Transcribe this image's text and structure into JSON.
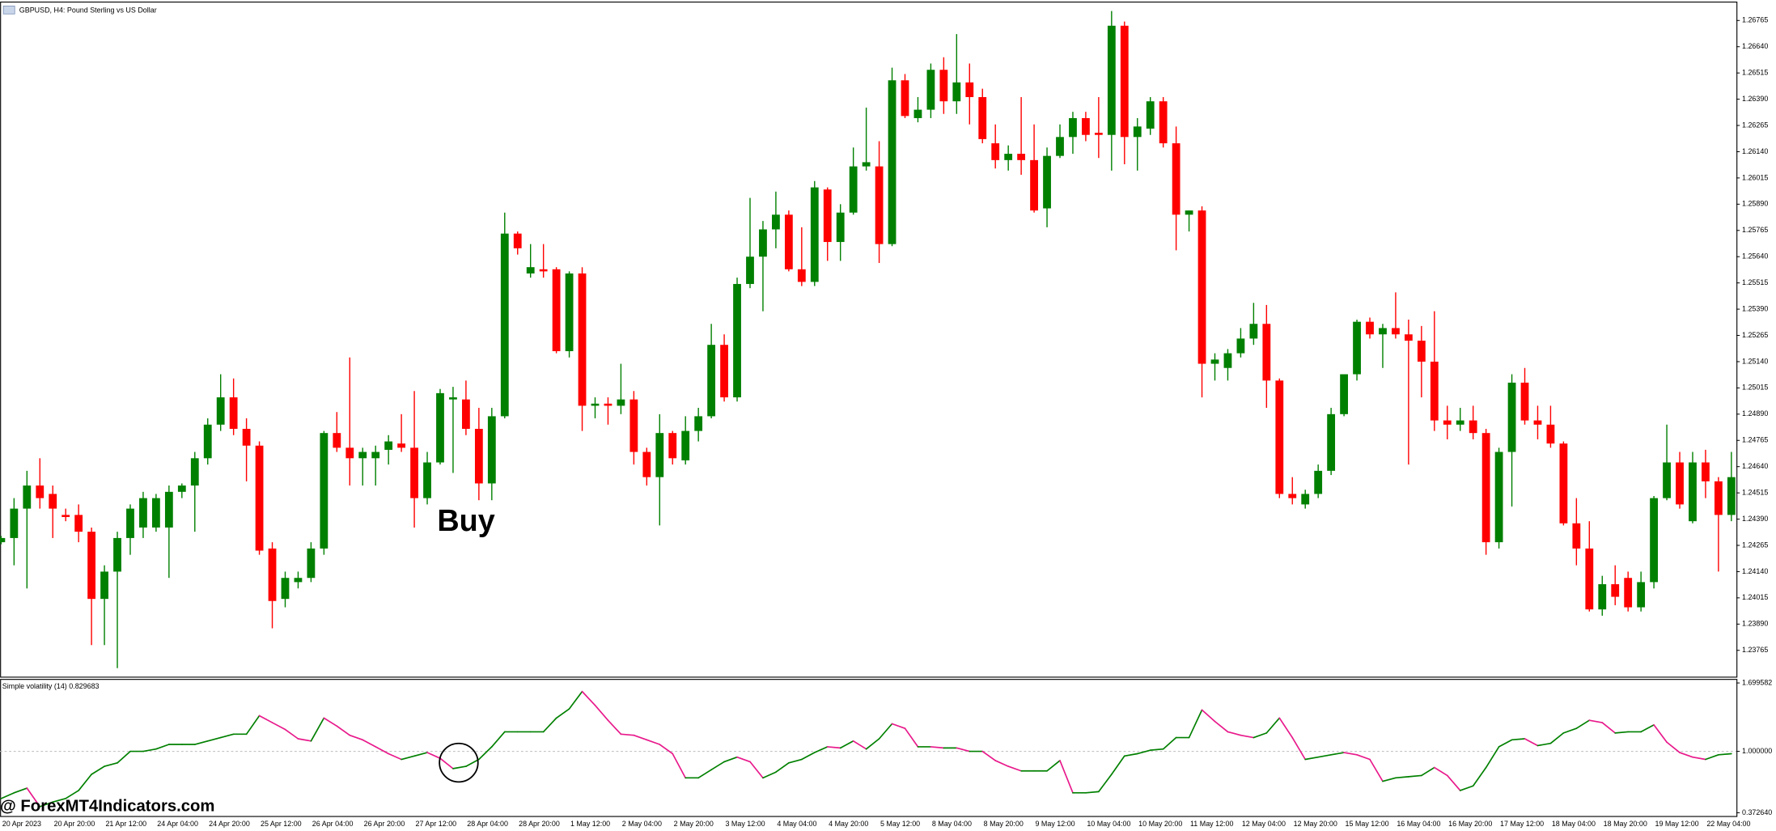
{
  "chart_data": [
    {
      "type": "candlestick",
      "title": "GBPUSD, H4:  Pound Sterling vs US Dollar",
      "annotation": "Buy",
      "categories": [
        "20 Apr 2023",
        null,
        null,
        null,
        "20 Apr 20:00",
        null,
        null,
        null,
        "21 Apr 12:00",
        null,
        null,
        null,
        "24 Apr 04:00",
        null,
        null,
        null,
        "24 Apr 20:00",
        null,
        null,
        null,
        "25 Apr 12:00",
        null,
        null,
        null,
        "26 Apr 04:00",
        null,
        null,
        null,
        "26 Apr 20:00",
        null,
        null,
        null,
        "27 Apr 12:00",
        null,
        null,
        null,
        "28 Apr 04:00",
        null,
        null,
        null,
        "28 Apr 20:00",
        null,
        null,
        null,
        "1 May 12:00",
        null,
        null,
        null,
        "2 May 04:00",
        null,
        null,
        null,
        "2 May 20:00",
        null,
        null,
        null,
        "3 May 12:00",
        null,
        null,
        null,
        "4 May 04:00",
        null,
        null,
        null,
        "4 May 20:00",
        null,
        null,
        null,
        "5 May 12:00",
        null,
        null,
        null,
        "8 May 04:00",
        null,
        null,
        null,
        "8 May 20:00",
        null,
        null,
        null,
        "9 May 12:00",
        null,
        null,
        null,
        "10 May 04:00",
        null,
        null,
        null,
        "10 May 20:00",
        null,
        null,
        null,
        "11 May 12:00",
        null,
        null,
        null,
        "12 May 04:00",
        null,
        null,
        null,
        "12 May 20:00",
        null,
        null,
        null,
        "15 May 12:00",
        null,
        null,
        null,
        "16 May 04:00",
        null,
        null,
        null,
        "16 May 20:00",
        null,
        null,
        null,
        "17 May 12:00",
        null,
        null,
        null,
        "18 May 04:00",
        null,
        null,
        null,
        "18 May 20:00",
        null,
        null,
        null,
        "19 May 12:00",
        null,
        null,
        null,
        "22 May 04:00",
        null,
        null
      ],
      "open": [
        1.2428,
        1.243,
        1.2444,
        1.2455,
        1.2451,
        1.2441,
        1.2441,
        1.2433,
        1.2401,
        1.2414,
        1.243,
        1.2435,
        1.2435,
        1.2435,
        1.2452,
        1.2455,
        1.2468,
        1.2484,
        1.2497,
        1.2482,
        1.2474,
        1.2425,
        1.2401,
        1.2409,
        1.2411,
        1.2425,
        1.248,
        1.2473,
        1.2468,
        1.2468,
        1.2472,
        1.2475,
        1.2473,
        1.2449,
        1.2466,
        1.2496,
        1.2496,
        1.2482,
        1.2456,
        1.2488,
        1.2575,
        1.2556,
        1.2558,
        1.2558,
        1.2519,
        1.2556,
        1.2493,
        1.2494,
        1.2493,
        1.2496,
        1.2471,
        1.2459,
        1.248,
        1.2467,
        1.2481,
        1.2488,
        1.2522,
        1.2497,
        1.2551,
        1.2564,
        1.2577,
        1.2584,
        1.2558,
        1.2552,
        1.2596,
        1.2571,
        1.2585,
        1.2607,
        1.2607,
        1.257,
        1.2648,
        1.263,
        1.2634,
        1.2653,
        1.2638,
        1.2647,
        1.264,
        1.2618,
        1.261,
        1.2613,
        1.261,
        1.2587,
        1.2612,
        1.2621,
        1.263,
        1.2623,
        1.2622,
        1.2674,
        1.2621,
        1.2625,
        1.2638,
        1.2618,
        1.2584,
        1.2586,
        1.2513,
        1.2511,
        1.2518,
        1.2525,
        1.2532,
        1.2505,
        1.2451,
        1.2446,
        1.2451,
        1.2462,
        1.2489,
        1.2508,
        1.2533,
        1.2527,
        1.253,
        1.2527,
        1.2524,
        1.2514,
        1.2486,
        1.2484,
        1.2486,
        1.248,
        1.2428,
        1.2471,
        1.2504,
        1.2486,
        1.2484,
        1.2475,
        1.2437,
        1.2425,
        1.2396,
        1.2408,
        1.2411,
        1.2397,
        1.2409,
        1.2449,
        1.2466,
        1.2438,
        1.2466,
        1.2457,
        1.2441
      ],
      "high": [
        1.2431,
        1.2449,
        1.2462,
        1.2468,
        1.2455,
        1.2444,
        1.2446,
        1.2435,
        1.2417,
        1.2433,
        1.2446,
        1.2452,
        1.2451,
        1.2455,
        1.2456,
        1.2471,
        1.2487,
        1.2508,
        1.2506,
        1.2487,
        1.2476,
        1.2428,
        1.2414,
        1.2414,
        1.2428,
        1.2481,
        1.249,
        1.2516,
        1.2473,
        1.2474,
        1.2479,
        1.2489,
        1.25,
        1.2471,
        1.2501,
        1.2502,
        1.2505,
        1.2492,
        1.2492,
        1.2585,
        1.2576,
        1.257,
        1.257,
        1.2559,
        1.2557,
        1.2559,
        1.2497,
        1.2497,
        1.2513,
        1.25,
        1.2473,
        1.2489,
        1.2481,
        1.2488,
        1.2492,
        1.2532,
        1.2527,
        1.2554,
        1.2592,
        1.2581,
        1.2595,
        1.2586,
        1.2578,
        1.26,
        1.2597,
        1.2589,
        1.2616,
        1.2635,
        1.2619,
        1.2654,
        1.2651,
        1.264,
        1.2656,
        1.2659,
        1.267,
        1.2656,
        1.2644,
        1.2627,
        1.2617,
        1.264,
        1.2627,
        1.2616,
        1.2627,
        1.2633,
        1.2633,
        1.264,
        1.2681,
        1.2676,
        1.263,
        1.264,
        1.264,
        1.2626,
        1.2586,
        1.2588,
        1.2518,
        1.252,
        1.253,
        1.2542,
        1.2541,
        1.2506,
        1.2459,
        1.2453,
        1.2465,
        1.2492,
        1.2508,
        1.2534,
        1.2535,
        1.2532,
        1.2547,
        1.2534,
        1.2531,
        1.2538,
        1.2493,
        1.2492,
        1.2493,
        1.2482,
        1.2473,
        1.2508,
        1.2511,
        1.2493,
        1.2493,
        1.2476,
        1.2449,
        1.2438,
        1.2412,
        1.2417,
        1.2414,
        1.2414,
        1.245,
        1.2484,
        1.2471,
        1.2471,
        1.2472,
        1.2459,
        1.2471
      ],
      "low": [
        1.2427,
        1.2417,
        1.2406,
        1.2444,
        1.243,
        1.2438,
        1.2428,
        1.2379,
        1.2379,
        1.2368,
        1.2422,
        1.243,
        1.2433,
        1.2411,
        1.2449,
        1.2433,
        1.2465,
        1.2481,
        1.2479,
        1.2457,
        1.2422,
        1.2387,
        1.2397,
        1.2406,
        1.2409,
        1.2422,
        1.2471,
        1.2455,
        1.2455,
        1.2455,
        1.2465,
        1.2471,
        1.2435,
        1.2446,
        1.2465,
        1.2461,
        1.2479,
        1.2448,
        1.2448,
        1.2487,
        1.2565,
        1.2554,
        1.2554,
        1.2518,
        1.2516,
        1.2481,
        1.2487,
        1.2484,
        1.2489,
        1.2465,
        1.2455,
        1.2436,
        1.2465,
        1.2465,
        1.2476,
        1.2487,
        1.2495,
        1.2495,
        1.2549,
        1.2538,
        1.2568,
        1.2557,
        1.255,
        1.255,
        1.2562,
        1.2562,
        1.2584,
        1.2605,
        1.2561,
        1.2569,
        1.263,
        1.2628,
        1.263,
        1.2632,
        1.2632,
        1.2627,
        1.2618,
        1.2606,
        1.2605,
        1.2603,
        1.2585,
        1.2578,
        1.2611,
        1.2613,
        1.2619,
        1.2611,
        1.2605,
        1.2608,
        1.2605,
        1.2622,
        1.2616,
        1.2567,
        1.2576,
        1.2497,
        1.2505,
        1.2505,
        1.2516,
        1.2522,
        1.2492,
        1.2449,
        1.2446,
        1.2444,
        1.2449,
        1.246,
        1.2488,
        1.2505,
        1.2525,
        1.2511,
        1.2525,
        1.2465,
        1.2497,
        1.2481,
        1.2477,
        1.2481,
        1.2477,
        1.2422,
        1.2425,
        1.2445,
        1.2484,
        1.2477,
        1.2473,
        1.2436,
        1.2417,
        1.2395,
        1.2393,
        1.2398,
        1.2395,
        1.2395,
        1.2406,
        1.2448,
        1.2444,
        1.2437,
        1.2449,
        1.2414,
        1.2438
      ],
      "close": [
        1.243,
        1.2444,
        1.2455,
        1.2449,
        1.2444,
        1.244,
        1.2433,
        1.2401,
        1.2414,
        1.243,
        1.2444,
        1.2449,
        1.2449,
        1.2452,
        1.2455,
        1.2468,
        1.2484,
        1.2497,
        1.2482,
        1.2474,
        1.2424,
        1.24,
        1.2411,
        1.2411,
        1.2425,
        1.248,
        1.2473,
        1.2468,
        1.2471,
        1.2471,
        1.2476,
        1.2473,
        1.2449,
        1.2466,
        1.2499,
        1.2497,
        1.2482,
        1.2456,
        1.2488,
        1.2575,
        1.2568,
        1.2559,
        1.2557,
        1.2519,
        1.2556,
        1.2493,
        1.2494,
        1.2493,
        1.2496,
        1.2471,
        1.2459,
        1.248,
        1.2468,
        1.2481,
        1.2488,
        1.2522,
        1.2497,
        1.2551,
        1.2564,
        1.2577,
        1.2584,
        1.2558,
        1.2552,
        1.2597,
        1.2571,
        1.2585,
        1.2607,
        1.2609,
        1.257,
        1.2648,
        1.2631,
        1.2634,
        1.2653,
        1.2638,
        1.2647,
        1.264,
        1.262,
        1.261,
        1.2613,
        1.261,
        1.2586,
        1.2612,
        1.2621,
        1.263,
        1.2622,
        1.2622,
        1.2674,
        1.2621,
        1.2626,
        1.2638,
        1.2618,
        1.2584,
        1.2586,
        1.2513,
        1.2515,
        1.2518,
        1.2525,
        1.2532,
        1.2505,
        1.2451,
        1.2449,
        1.2451,
        1.2462,
        1.2489,
        1.2508,
        1.2533,
        1.2527,
        1.253,
        1.2527,
        1.2524,
        1.2514,
        1.2486,
        1.2484,
        1.2486,
        1.248,
        1.2428,
        1.2471,
        1.2504,
        1.2486,
        1.2484,
        1.2475,
        1.2437,
        1.2425,
        1.2396,
        1.2408,
        1.2402,
        1.2397,
        1.2409,
        1.2449,
        1.2466,
        1.2446,
        1.2466,
        1.2457,
        1.2441,
        1.2459
      ],
      "up_color": "#008000",
      "down_color": "#ff0000",
      "ylim": [
        1.2364,
        1.2685
      ],
      "yticks": [
        1.26765,
        {
          "value": 1.2664,
          "label": "1.26640"
        },
        1.26515,
        {
          "value": 1.2639,
          "label": "1.26390"
        },
        1.26265,
        {
          "value": 1.2614,
          "label": "1.26140"
        },
        1.26015,
        {
          "value": 1.2589,
          "label": "1.25890"
        },
        1.25765,
        {
          "value": 1.2564,
          "label": "1.25640"
        },
        1.25515,
        {
          "value": 1.2539,
          "label": "1.25390"
        },
        1.25265,
        {
          "value": 1.2514,
          "label": "1.25140"
        },
        1.25015,
        {
          "value": 1.2489,
          "label": "1.24890"
        },
        1.24765,
        {
          "value": 1.2464,
          "label": "1.24640"
        },
        1.24515,
        {
          "value": 1.2439,
          "label": "1.24390"
        },
        1.24265,
        {
          "value": 1.2414,
          "label": "1.24140"
        },
        1.24015,
        {
          "value": 1.2389,
          "label": "1.23890"
        },
        1.23765
      ],
      "grid": false
    },
    {
      "type": "line",
      "title": "Simple volatility (14) 0.829683",
      "values": [
        0.518,
        0.576,
        0.624,
        0.435,
        0.482,
        0.518,
        0.6,
        0.765,
        0.847,
        0.882,
        1.0,
        1.0,
        1.024,
        1.071,
        1.071,
        1.071,
        1.106,
        1.141,
        1.176,
        1.176,
        1.365,
        1.294,
        1.224,
        1.129,
        1.106,
        1.341,
        1.259,
        1.165,
        1.118,
        1.047,
        0.976,
        0.918,
        0.953,
        0.988,
        0.929,
        0.824,
        0.847,
        0.918,
        1.047,
        1.2,
        1.2,
        1.2,
        1.2,
        1.341,
        1.435,
        1.612,
        1.471,
        1.318,
        1.176,
        1.165,
        1.118,
        1.071,
        0.976,
        0.729,
        0.729,
        0.812,
        0.894,
        0.941,
        0.894,
        0.729,
        0.788,
        0.882,
        0.918,
        0.988,
        1.047,
        1.035,
        1.106,
        1.024,
        1.129,
        1.282,
        1.235,
        1.047,
        1.047,
        1.035,
        1.035,
        1.0,
        1.0,
        0.906,
        0.847,
        0.8,
        0.8,
        0.8,
        0.906,
        0.576,
        0.576,
        0.588,
        0.765,
        0.953,
        0.976,
        1.012,
        1.024,
        1.141,
        1.141,
        1.424,
        1.306,
        1.2,
        1.165,
        1.141,
        1.188,
        1.341,
        1.141,
        0.918,
        0.941,
        0.965,
        0.988,
        0.965,
        0.918,
        0.694,
        0.729,
        0.741,
        0.753,
        0.835,
        0.753,
        0.6,
        0.647,
        0.835,
        1.047,
        1.118,
        1.129,
        1.059,
        1.082,
        1.188,
        1.235,
        1.318,
        1.294,
        1.188,
        1.2,
        1.2,
        1.271,
        1.094,
        0.988,
        0.941,
        0.918,
        0.965,
        0.976
      ],
      "up_color": "#008000",
      "down_color": "#e8198b",
      "ylim": [
        0.34,
        1.73
      ],
      "yticks": [
        1.699582,
        {
          "value": 1,
          "label": "1.000000"
        },
        {
          "value": 0.37264,
          "label": "0.372640"
        }
      ],
      "levels": [
        1
      ]
    }
  ],
  "watermark": "@ ForexMT4Indicators.com"
}
